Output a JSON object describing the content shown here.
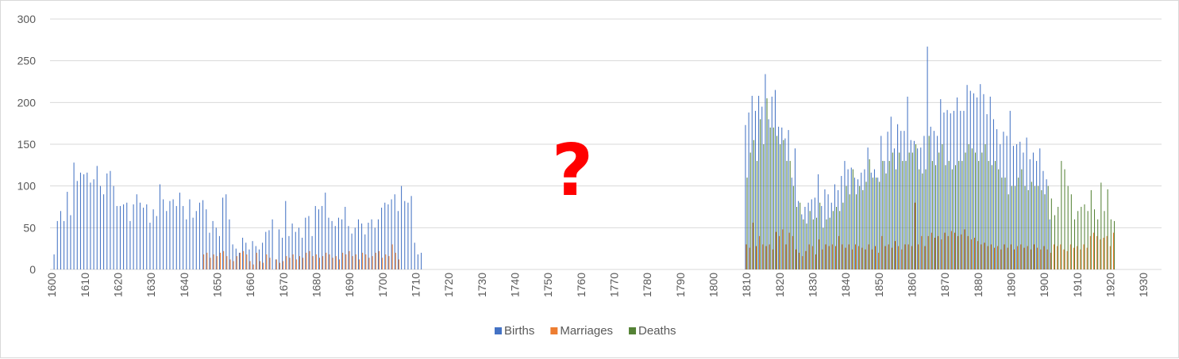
{
  "chart_data": {
    "type": "bar",
    "title": "",
    "xlabel": "",
    "ylabel": "",
    "ylim": [
      0,
      300
    ],
    "yticks": [
      0,
      50,
      100,
      150,
      200,
      250,
      300
    ],
    "xlim": [
      1600,
      1935
    ],
    "xtick_labels": [
      "1600",
      "1610",
      "1620",
      "1630",
      "1640",
      "1650",
      "1660",
      "1670",
      "1680",
      "1690",
      "1700",
      "1710",
      "1720",
      "1730",
      "1740",
      "1750",
      "1760",
      "1770",
      "1780",
      "1790",
      "1800",
      "1810",
      "1820",
      "1830",
      "1840",
      "1850",
      "1860",
      "1870",
      "1880",
      "1890",
      "1900",
      "1910",
      "1920",
      "1930"
    ],
    "grid": true,
    "legend": "bottom",
    "annotation": "?",
    "colors": {
      "Births": "#4472c4",
      "Marriages": "#ed7d31",
      "Deaths": "#548235",
      "annotation": "#ff0000",
      "grid": "#d9d9d9",
      "text": "#595959"
    },
    "series": [
      {
        "name": "Births",
        "start_year": 1601,
        "values": [
          18,
          58,
          70,
          58,
          93,
          65,
          128,
          106,
          116,
          114,
          116,
          104,
          108,
          124,
          100,
          90,
          115,
          118,
          100,
          76,
          76,
          78,
          80,
          58,
          78,
          90,
          80,
          74,
          78,
          56,
          72,
          64,
          102,
          84,
          70,
          82,
          84,
          76,
          92,
          76,
          60,
          84,
          62,
          70,
          80,
          83,
          72,
          44,
          58,
          50,
          40,
          86,
          90,
          60,
          30,
          25,
          20,
          38,
          32,
          24,
          34,
          28,
          24,
          32,
          45,
          47,
          60,
          12,
          48,
          38,
          82,
          40,
          55,
          45,
          50,
          38,
          62,
          64,
          40,
          76,
          72,
          76,
          92,
          62,
          58,
          52,
          62,
          60,
          75,
          52,
          43,
          50,
          60,
          55,
          42,
          56,
          60,
          50,
          60,
          74,
          80,
          78,
          84,
          90,
          70,
          100,
          82,
          80,
          88,
          32,
          18,
          20
        ],
        "gap_to": 1810,
        "values_after_gap": [
          173,
          188,
          208,
          190,
          208,
          195,
          234,
          180,
          207,
          215,
          171,
          170,
          157,
          167,
          110,
          145,
          82,
          66,
          75,
          80,
          84,
          86,
          114,
          76,
          96,
          90,
          80,
          102,
          95,
          112,
          130,
          120,
          122,
          110,
          108,
          116,
          120,
          146,
          116,
          120,
          110,
          160,
          130,
          165,
          183,
          145,
          174,
          166,
          166,
          207,
          155,
          154,
          145,
          146,
          160,
          267,
          171,
          166,
          160,
          204,
          188,
          191,
          187,
          190,
          206,
          190,
          190,
          221,
          214,
          211,
          206,
          222,
          210,
          186,
          207,
          180,
          168,
          150,
          165,
          160,
          190,
          148,
          150,
          153,
          140,
          158,
          132,
          140,
          130,
          145,
          118,
          108,
          60
        ]
      },
      {
        "name": "Marriages",
        "start_year": 1646,
        "values": [
          18,
          20,
          14,
          18,
          16,
          20,
          22,
          16,
          12,
          10,
          16,
          20,
          22,
          18,
          10,
          6,
          20,
          10,
          8,
          18,
          14,
          0,
          12,
          8,
          10,
          16,
          14,
          18,
          12,
          16,
          14,
          20,
          22,
          16,
          18,
          14,
          16,
          20,
          18,
          14,
          16,
          12,
          20,
          18,
          22,
          16,
          18,
          12,
          20,
          18,
          14,
          16,
          20,
          22,
          14,
          18,
          16,
          30,
          20,
          12
        ],
        "gap_to": 1810,
        "values_after_gap": [
          30,
          26,
          56,
          28,
          40,
          30,
          28,
          30,
          24,
          45,
          40,
          48,
          30,
          44,
          40,
          24,
          20,
          16,
          22,
          30,
          28,
          18,
          36,
          24,
          30,
          28,
          30,
          28,
          40,
          30,
          26,
          30,
          24,
          30,
          28,
          26,
          24,
          30,
          24,
          28,
          20,
          40,
          28,
          30,
          26,
          34,
          28,
          24,
          30,
          30,
          28,
          80,
          30,
          40,
          28,
          40,
          44,
          38,
          40,
          36,
          44,
          40,
          46,
          44,
          40,
          42,
          48,
          40,
          36,
          38,
          34,
          30,
          32,
          28,
          30,
          26,
          28,
          24,
          30,
          26,
          30,
          24,
          28,
          30,
          26,
          28,
          24,
          30,
          26,
          24,
          28,
          24,
          20,
          30,
          28,
          30,
          24,
          22,
          30,
          26,
          28,
          24,
          30,
          26,
          40,
          44,
          40,
          36,
          38,
          40,
          28,
          44
        ]
      },
      {
        "name": "Deaths",
        "start_year": 1810,
        "values": [
          110,
          140,
          155,
          130,
          180,
          150,
          205,
          170,
          170,
          160,
          150,
          155,
          130,
          130,
          100,
          75,
          80,
          60,
          55,
          70,
          60,
          62,
          80,
          50,
          60,
          62,
          70,
          75,
          70,
          80,
          100,
          90,
          120,
          90,
          100,
          95,
          105,
          132,
          110,
          110,
          105,
          130,
          115,
          130,
          140,
          120,
          140,
          130,
          130,
          140,
          140,
          150,
          120,
          115,
          120,
          160,
          130,
          125,
          140,
          150,
          125,
          130,
          120,
          125,
          130,
          130,
          140,
          150,
          145,
          140,
          130,
          140,
          150,
          130,
          125,
          130,
          120,
          110,
          110,
          90,
          100,
          100,
          110,
          120,
          100,
          95,
          105,
          100,
          100,
          95,
          90,
          100,
          85,
          65,
          75,
          130,
          120,
          100,
          90,
          60,
          70,
          75,
          78,
          70,
          95,
          72,
          60,
          104,
          70,
          96,
          60,
          58
        ]
      }
    ]
  },
  "legend_items": [
    {
      "label": "Births",
      "color": "#4472c4"
    },
    {
      "label": "Marriages",
      "color": "#ed7d31"
    },
    {
      "label": "Deaths",
      "color": "#548235"
    }
  ]
}
